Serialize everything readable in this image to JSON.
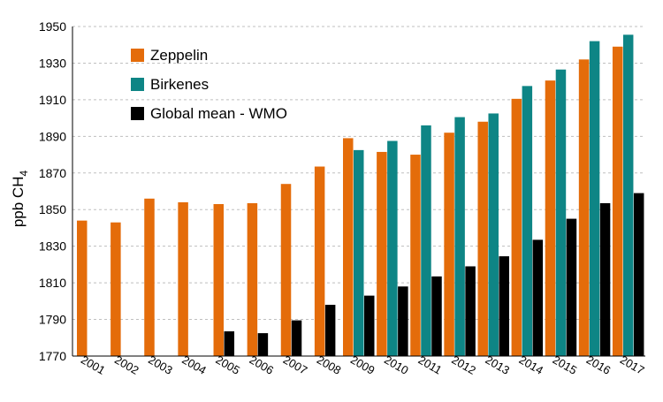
{
  "chart_data": {
    "type": "bar",
    "title": "",
    "xlabel": "",
    "ylabel": "ppb CH",
    "ylabel_subscript": "4",
    "ylim": [
      1770,
      1950
    ],
    "yticks": [
      1770,
      1790,
      1810,
      1830,
      1850,
      1870,
      1890,
      1910,
      1930,
      1950
    ],
    "grid": "horizontal dashed",
    "legend_position": "top-left",
    "categories": [
      "2001",
      "2002",
      "2003",
      "2004",
      "2005",
      "2006",
      "2007",
      "2008",
      "2009",
      "2010",
      "2011",
      "2012",
      "2013",
      "2014",
      "2015",
      "2016",
      "2017"
    ],
    "series": [
      {
        "name": "Zeppelin",
        "color": "#e46c0a",
        "values": [
          1844,
          1843,
          1856,
          1854,
          1853,
          1853.5,
          1864,
          1873.5,
          1889,
          1881.5,
          1880,
          1892,
          1898,
          1910.5,
          1920.5,
          1932,
          1939
        ]
      },
      {
        "name": "Birkenes",
        "color": "#0e8585",
        "values": [
          null,
          null,
          null,
          null,
          null,
          null,
          null,
          null,
          1882.5,
          1887.5,
          1896,
          1900.5,
          1902.5,
          1917.5,
          1926.5,
          1942,
          1945.5
        ]
      },
      {
        "name": "Global mean - WMO",
        "color": "#000000",
        "values": [
          null,
          null,
          null,
          null,
          1783.5,
          1782.5,
          1789.5,
          1798,
          1803,
          1808,
          1813.5,
          1819,
          1824.5,
          1833.5,
          1845,
          1853.5,
          1859
        ]
      }
    ]
  }
}
